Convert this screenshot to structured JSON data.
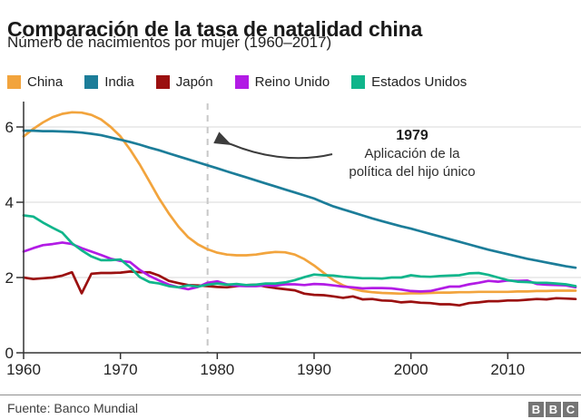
{
  "header": {
    "title": "Comparación de la tasa de natalidad china",
    "subtitle": "Número de nacimientos por mujer (1960–2017)"
  },
  "annotation": {
    "year": "1979",
    "line1": "Aplicación de la",
    "line2": "política del hijo único"
  },
  "footer": {
    "source": "Fuente: Banco Mundial",
    "logo_letters": [
      "B",
      "B",
      "C"
    ]
  },
  "colors": {
    "grid": "#d8d8d8",
    "axis": "#333333",
    "tick_text": "#222222",
    "dashed_line": "#c8c8c8",
    "arrow": "#3d3d3d"
  },
  "chart_data": {
    "type": "line",
    "title": "Comparación de la tasa de natalidad china",
    "subtitle": "Número de nacimientos por mujer (1960–2017)",
    "xlabel": "",
    "ylabel": "",
    "xlim": [
      1960,
      2017
    ],
    "ylim": [
      0,
      6.6
    ],
    "x_ticks": [
      1960,
      1970,
      1980,
      1990,
      2000,
      2010
    ],
    "y_ticks": [
      0,
      2,
      4,
      6
    ],
    "grid": true,
    "legend_position": "top",
    "policy_line_year": 1979,
    "x": [
      1960,
      1961,
      1962,
      1963,
      1964,
      1965,
      1966,
      1967,
      1968,
      1969,
      1970,
      1971,
      1972,
      1973,
      1974,
      1975,
      1976,
      1977,
      1978,
      1979,
      1980,
      1981,
      1982,
      1983,
      1984,
      1985,
      1986,
      1987,
      1988,
      1989,
      1990,
      1991,
      1992,
      1993,
      1994,
      1995,
      1996,
      1997,
      1998,
      1999,
      2000,
      2001,
      2002,
      2003,
      2004,
      2005,
      2006,
      2007,
      2008,
      2009,
      2010,
      2011,
      2012,
      2013,
      2014,
      2015,
      2016,
      2017
    ],
    "series": [
      {
        "name": "China",
        "color": "#F2A43D",
        "values": [
          5.75,
          5.95,
          6.12,
          6.26,
          6.35,
          6.39,
          6.38,
          6.32,
          6.2,
          6.0,
          5.75,
          5.4,
          5.0,
          4.55,
          4.1,
          3.7,
          3.35,
          3.07,
          2.88,
          2.75,
          2.66,
          2.61,
          2.59,
          2.59,
          2.61,
          2.65,
          2.68,
          2.67,
          2.61,
          2.49,
          2.32,
          2.12,
          1.93,
          1.79,
          1.7,
          1.64,
          1.61,
          1.59,
          1.58,
          1.57,
          1.58,
          1.58,
          1.59,
          1.6,
          1.6,
          1.61,
          1.61,
          1.62,
          1.62,
          1.62,
          1.62,
          1.63,
          1.63,
          1.64,
          1.64,
          1.65,
          1.65,
          1.65
        ]
      },
      {
        "name": "India",
        "color": "#1C7D99",
        "values": [
          5.9,
          5.9,
          5.89,
          5.89,
          5.88,
          5.87,
          5.85,
          5.82,
          5.78,
          5.72,
          5.66,
          5.6,
          5.53,
          5.45,
          5.38,
          5.3,
          5.22,
          5.14,
          5.06,
          4.98,
          4.9,
          4.82,
          4.74,
          4.66,
          4.58,
          4.5,
          4.42,
          4.34,
          4.26,
          4.18,
          4.1,
          3.99,
          3.89,
          3.81,
          3.73,
          3.65,
          3.57,
          3.5,
          3.43,
          3.36,
          3.3,
          3.23,
          3.16,
          3.09,
          3.02,
          2.95,
          2.88,
          2.81,
          2.74,
          2.68,
          2.62,
          2.56,
          2.5,
          2.45,
          2.4,
          2.35,
          2.3,
          2.26
        ]
      },
      {
        "name": "Japón",
        "color": "#9B1010",
        "values": [
          2.0,
          1.96,
          1.98,
          2.0,
          2.05,
          2.14,
          1.58,
          2.1,
          2.12,
          2.12,
          2.13,
          2.16,
          2.14,
          2.14,
          2.05,
          1.91,
          1.85,
          1.8,
          1.79,
          1.77,
          1.75,
          1.74,
          1.77,
          1.8,
          1.81,
          1.76,
          1.72,
          1.69,
          1.66,
          1.57,
          1.54,
          1.53,
          1.5,
          1.46,
          1.5,
          1.42,
          1.43,
          1.39,
          1.38,
          1.34,
          1.36,
          1.33,
          1.32,
          1.29,
          1.29,
          1.26,
          1.32,
          1.34,
          1.37,
          1.37,
          1.39,
          1.39,
          1.41,
          1.43,
          1.42,
          1.45,
          1.44,
          1.43
        ]
      },
      {
        "name": "Reino Unido",
        "color": "#B21BE5",
        "values": [
          2.69,
          2.78,
          2.86,
          2.89,
          2.93,
          2.89,
          2.78,
          2.69,
          2.6,
          2.5,
          2.44,
          2.41,
          2.2,
          2.04,
          1.92,
          1.81,
          1.74,
          1.69,
          1.75,
          1.86,
          1.9,
          1.82,
          1.78,
          1.77,
          1.77,
          1.79,
          1.78,
          1.82,
          1.82,
          1.8,
          1.83,
          1.82,
          1.79,
          1.76,
          1.74,
          1.71,
          1.72,
          1.72,
          1.71,
          1.68,
          1.64,
          1.63,
          1.64,
          1.7,
          1.76,
          1.76,
          1.82,
          1.86,
          1.91,
          1.89,
          1.92,
          1.91,
          1.92,
          1.83,
          1.81,
          1.8,
          1.79,
          1.74
        ]
      },
      {
        "name": "Estados Unidos",
        "color": "#10B58B",
        "values": [
          3.65,
          3.62,
          3.46,
          3.32,
          3.19,
          2.91,
          2.72,
          2.56,
          2.46,
          2.46,
          2.48,
          2.27,
          2.01,
          1.88,
          1.84,
          1.77,
          1.74,
          1.79,
          1.76,
          1.81,
          1.84,
          1.81,
          1.83,
          1.8,
          1.81,
          1.84,
          1.84,
          1.87,
          1.93,
          2.01,
          2.08,
          2.06,
          2.05,
          2.02,
          2.0,
          1.98,
          1.98,
          1.97,
          2.0,
          2.0,
          2.06,
          2.03,
          2.02,
          2.04,
          2.05,
          2.06,
          2.11,
          2.12,
          2.07,
          2.0,
          1.93,
          1.89,
          1.88,
          1.86,
          1.86,
          1.84,
          1.82,
          1.77
        ]
      }
    ]
  }
}
